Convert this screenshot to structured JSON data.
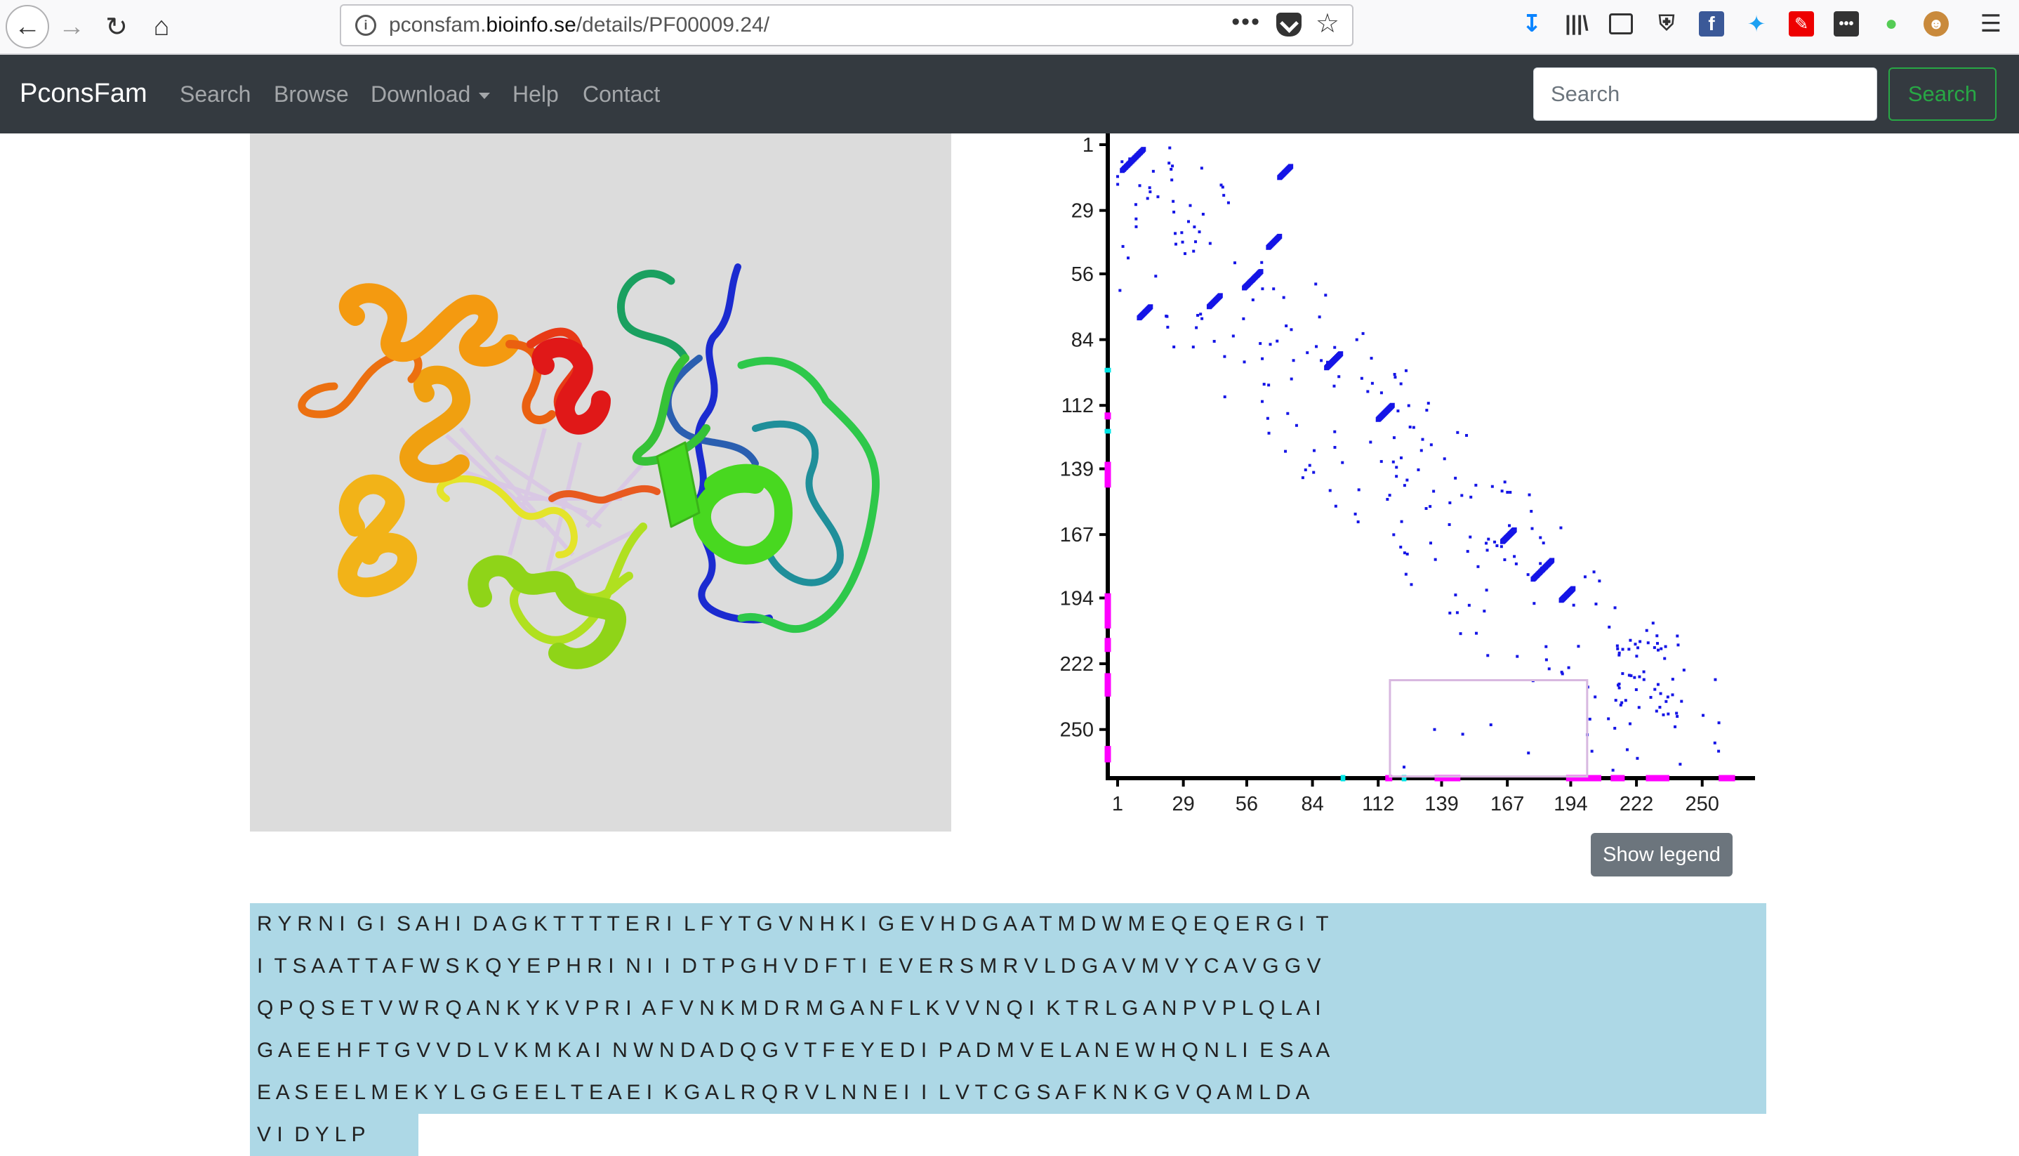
{
  "browser": {
    "url_prefix": "pconsfam.",
    "url_domain": "bioinfo.se",
    "url_path": "/details/PF00009.24/",
    "icons": [
      "back-arrow-icon",
      "forward-arrow-icon",
      "reload-icon",
      "home-icon",
      "info-icon",
      "page-actions-icon",
      "pocket-icon",
      "bookmark-star-icon",
      "download-icon",
      "library-icon",
      "sidebar-icon",
      "ublock-shield-icon",
      "facebook-icon",
      "twitter-icon",
      "pencil-icon",
      "dots-extension-icon",
      "green-extension-icon",
      "monkey-icon",
      "hamburger-menu-icon"
    ]
  },
  "navbar": {
    "brand": "PconsFam",
    "links": [
      "Search",
      "Browse",
      "Download",
      "Help",
      "Contact"
    ],
    "search_placeholder": "Search",
    "search_button": "Search"
  },
  "structure": {
    "description": "3D cartoon protein structure, rainbow colored from blue (N-terminus) to red (C-terminus), with light purple contact lines",
    "background": "#dcdcdc"
  },
  "contact_map": {
    "tick_labels": [
      "1",
      "29",
      "56",
      "84",
      "112",
      "139",
      "167",
      "194",
      "222",
      "250"
    ],
    "tick_values": [
      1,
      29,
      56,
      84,
      112,
      139,
      167,
      194,
      222,
      250
    ],
    "max_residue": 271,
    "contact_color": "#1515e6",
    "highlight_box_color": "#d8b8e0",
    "highlight_box_range": {
      "x": [
        117,
        201
      ],
      "y": [
        229,
        270
      ]
    },
    "edge_marks": [
      {
        "start": 96,
        "end": 98,
        "color": "#00e5e5"
      },
      {
        "start": 115,
        "end": 118,
        "color": "#ff00ff"
      },
      {
        "start": 122,
        "end": 124,
        "color": "#00e5e5"
      },
      {
        "start": 136,
        "end": 147,
        "color": "#ff00ff"
      },
      {
        "start": 192,
        "end": 207,
        "color": "#ff00ff"
      },
      {
        "start": 211,
        "end": 217,
        "color": "#ff00ff"
      },
      {
        "start": 226,
        "end": 236,
        "color": "#ff00ff"
      },
      {
        "start": 257,
        "end": 264,
        "color": "#ff00ff"
      }
    ]
  },
  "legend_button": "Show legend",
  "sequence_lines": [
    "R Y R N I  G I  S A H I  D A G K T T T T E R I  L F Y T G V N H K I  G E V H D G A A T M D W M E Q E Q E R G I  T",
    "I  T S A A T T A F W S K Q Y E P H R I  N I  I  D T P G H V D F T I  E V E R S M R V L D G A V M V Y C A V G G V",
    "Q P Q S E T V W R Q A N K Y K V P R I  A F V N K M D R M G A N F L K V V N Q I  K T R L G A N P V P L Q L A I",
    "G A E E H F T G V V D L V K M K A I  N W N D A D Q G V T F E Y E D I  P A D M V E L A N E W H Q N L I  E S A A",
    "E A S E E L M E K Y L G G E E L T E A E I  K G A L R Q R V L N N E I  I  L V T C G S A F K N K G V Q A M L D A",
    "V I  D Y L P"
  ]
}
